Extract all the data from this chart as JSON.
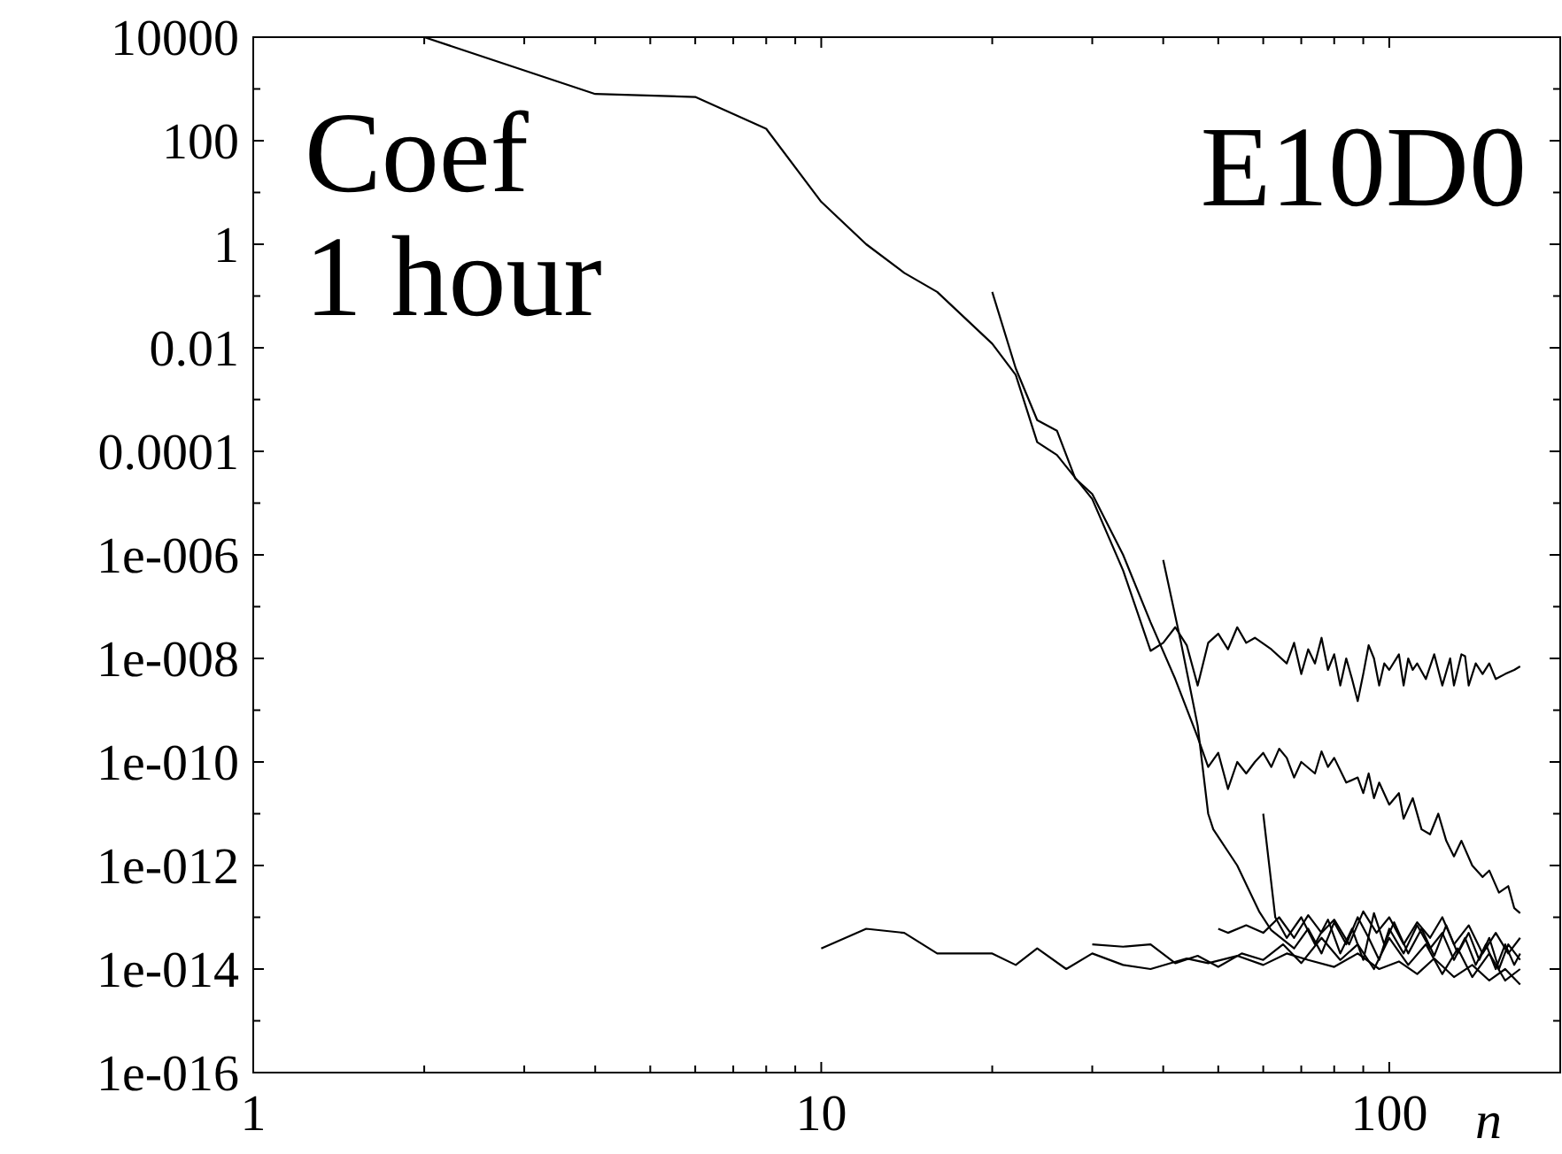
{
  "chart_data": {
    "type": "line",
    "xlabel": "n",
    "log": "xy",
    "marker": "none",
    "xlim": [
      1,
      200
    ],
    "ylim": [
      1e-16,
      10000
    ],
    "xticks": [
      {
        "value": 1,
        "label": "1"
      },
      {
        "value": 2,
        "label": null
      },
      {
        "value": 3,
        "label": null
      },
      {
        "value": 4,
        "label": null
      },
      {
        "value": 5,
        "label": null
      },
      {
        "value": 6,
        "label": null
      },
      {
        "value": 7,
        "label": null
      },
      {
        "value": 8,
        "label": null
      },
      {
        "value": 9,
        "label": null
      },
      {
        "value": 10,
        "label": "10"
      },
      {
        "value": 20,
        "label": null
      },
      {
        "value": 30,
        "label": null
      },
      {
        "value": 40,
        "label": null
      },
      {
        "value": 50,
        "label": null
      },
      {
        "value": 60,
        "label": null
      },
      {
        "value": 70,
        "label": null
      },
      {
        "value": 80,
        "label": null
      },
      {
        "value": 90,
        "label": null
      },
      {
        "value": 100,
        "label": "100"
      }
    ],
    "yticks": [
      {
        "value": 1e-16,
        "label": "1e-016"
      },
      {
        "value": 1e-15,
        "label": null
      },
      {
        "value": 1e-14,
        "label": "1e-014"
      },
      {
        "value": 1e-13,
        "label": null
      },
      {
        "value": 1e-12,
        "label": "1e-012"
      },
      {
        "value": 1e-11,
        "label": null
      },
      {
        "value": 1e-10,
        "label": "1e-010"
      },
      {
        "value": 1e-09,
        "label": null
      },
      {
        "value": 1e-08,
        "label": "1e-008"
      },
      {
        "value": 1e-07,
        "label": null
      },
      {
        "value": 1e-06,
        "label": "1e-006"
      },
      {
        "value": 1e-05,
        "label": null
      },
      {
        "value": 0.0001,
        "label": "0.0001"
      },
      {
        "value": 0.001,
        "label": null
      },
      {
        "value": 0.01,
        "label": "0.01"
      },
      {
        "value": 0.1,
        "label": null
      },
      {
        "value": 1,
        "label": "1"
      },
      {
        "value": 10,
        "label": null
      },
      {
        "value": 100,
        "label": "100"
      },
      {
        "value": 1000,
        "label": null
      },
      {
        "value": 10000,
        "label": "10000"
      }
    ],
    "annotations": [
      "Coef",
      "1 hour",
      "E10D0"
    ],
    "series": [
      {
        "color": "#000000",
        "x": [
          1,
          2,
          4,
          6,
          8,
          10,
          12,
          14,
          16,
          20,
          22,
          24,
          26,
          30,
          34,
          38,
          40,
          42,
          44,
          46,
          48,
          50,
          52,
          54,
          56,
          58,
          62,
          66,
          68,
          70,
          72,
          74,
          76,
          78,
          80,
          82,
          84,
          86,
          88,
          90,
          92,
          94,
          96,
          98,
          100,
          104,
          106,
          108,
          110,
          112,
          116,
          120,
          124,
          128,
          130,
          134,
          136,
          138,
          142,
          146,
          150,
          154,
          160,
          166,
          170
        ],
        "values": [
          10000,
          10000,
          800,
          700,
          170,
          6.6,
          1,
          0.28,
          0.12,
          0.012,
          0.003,
          0.00015,
          8.5e-05,
          1.2e-05,
          5e-07,
          1.4e-08,
          2e-08,
          4e-08,
          1.8e-08,
          3e-09,
          2e-08,
          3e-08,
          1.5e-08,
          4e-08,
          2e-08,
          2.5e-08,
          1.5e-08,
          8e-09,
          2e-08,
          5e-09,
          1.5e-08,
          8e-09,
          2.5e-08,
          6e-09,
          1.2e-08,
          3e-09,
          1e-08,
          4e-09,
          1.5e-09,
          5e-09,
          1.8e-08,
          1e-08,
          3e-09,
          8e-09,
          6e-09,
          1.2e-08,
          3e-09,
          1e-08,
          6e-09,
          8e-09,
          4e-09,
          1.2e-08,
          3e-09,
          1e-08,
          3e-09,
          1.2e-08,
          1.1e-08,
          3e-09,
          8e-09,
          5e-09,
          8e-09,
          4e-09,
          5e-09,
          6e-09,
          7e-09
        ]
      },
      {
        "color": "#000000",
        "x": [
          20,
          22,
          24,
          26,
          28,
          30,
          34,
          38,
          42,
          46,
          48,
          50,
          52,
          54,
          56,
          58,
          60,
          62,
          64,
          66,
          68,
          70,
          74,
          76,
          78,
          80,
          84,
          88,
          90,
          92,
          94,
          96,
          100,
          104,
          106,
          110,
          114,
          118,
          122,
          126,
          130,
          134,
          140,
          146,
          150,
          156,
          162,
          166,
          170
        ],
        "values": [
          0.12,
          0.004,
          0.0004,
          0.00025,
          3e-05,
          1.5e-05,
          1e-06,
          5e-08,
          4e-09,
          3e-10,
          8e-11,
          1.5e-10,
          3e-11,
          1e-10,
          6e-11,
          1e-10,
          1.5e-10,
          8e-11,
          1.8e-10,
          1.2e-10,
          5e-11,
          1e-10,
          6e-11,
          1.6e-10,
          8e-11,
          1.2e-10,
          4e-11,
          5e-11,
          2.5e-11,
          6e-11,
          2e-11,
          4e-11,
          1.5e-11,
          2.5e-11,
          8e-12,
          2e-11,
          5e-12,
          4e-12,
          1e-11,
          3e-12,
          1.5e-12,
          3e-12,
          1e-12,
          6e-13,
          8e-13,
          3e-13,
          4e-13,
          1.5e-13,
          1.2e-13
        ]
      },
      {
        "color": "#000000",
        "x": [
          40,
          43,
          46,
          48,
          49,
          54,
          59,
          62,
          68,
          72,
          76,
          80,
          84,
          88,
          92,
          96,
          100,
          106,
          112,
          118,
          124,
          130,
          136,
          142,
          148,
          154,
          160,
          166,
          170
        ],
        "values": [
          8e-07,
          2e-08,
          5e-10,
          1e-11,
          5e-12,
          1e-12,
          1.3e-13,
          5.6e-14,
          2.5e-14,
          6e-14,
          2e-14,
          8e-14,
          3e-14,
          1e-13,
          4e-14,
          1.5e-14,
          6e-14,
          2e-14,
          7e-14,
          2.5e-14,
          5e-14,
          1.5e-14,
          4e-14,
          1.2e-14,
          3e-14,
          1e-14,
          3e-14,
          1.2e-14,
          2e-14
        ]
      },
      {
        "color": "#000000",
        "x": [
          60,
          63,
          66,
          70,
          74,
          78,
          82,
          86,
          90,
          94,
          98,
          102,
          108,
          114,
          120,
          126,
          132,
          138,
          144,
          150,
          156,
          162,
          170
        ],
        "values": [
          1e-11,
          1e-13,
          4e-14,
          1e-13,
          3e-14,
          9e-14,
          2e-14,
          6e-14,
          1.5e-14,
          1.2e-13,
          3e-14,
          8e-14,
          2e-14,
          6e-14,
          1.8e-14,
          7e-14,
          2e-14,
          5e-14,
          1.5e-14,
          4e-14,
          1e-14,
          3e-14,
          1.5e-14
        ]
      },
      {
        "color": "#000000",
        "x": [
          10,
          12,
          14,
          16,
          18,
          20,
          22,
          24,
          27,
          30,
          34,
          38,
          44,
          48,
          54,
          60,
          66,
          72,
          80,
          88,
          96,
          104,
          112,
          120,
          130,
          140,
          150,
          160,
          170
        ],
        "values": [
          2.5e-14,
          6e-14,
          5e-14,
          2e-14,
          2e-14,
          2e-14,
          1.2e-14,
          2.5e-14,
          1e-14,
          2e-14,
          1.2e-14,
          1e-14,
          1.6e-14,
          1.3e-14,
          1.8e-14,
          1.2e-14,
          2e-14,
          1.5e-14,
          1.1e-14,
          2e-14,
          1e-14,
          1.4e-14,
          8e-15,
          1.6e-14,
          7e-15,
          1.2e-14,
          6e-15,
          1e-14,
          5e-15
        ]
      },
      {
        "color": "#000000",
        "x": [
          30,
          34,
          38,
          42,
          46,
          50,
          55,
          60,
          65,
          70,
          76,
          82,
          88,
          94,
          100,
          108,
          116,
          124,
          132,
          140,
          150,
          160,
          170
        ],
        "values": [
          3e-14,
          2.7e-14,
          3e-14,
          1.3e-14,
          1.8e-14,
          1.1e-14,
          2e-14,
          1.5e-14,
          3e-14,
          1.3e-14,
          4e-14,
          1.5e-14,
          3e-14,
          1e-14,
          4e-14,
          1.2e-14,
          3e-14,
          8e-15,
          2.5e-14,
          7e-15,
          2e-14,
          6e-15,
          1e-14
        ]
      },
      {
        "color": "#000000",
        "x": [
          50,
          52,
          56,
          60,
          64,
          68,
          72,
          76,
          80,
          85,
          90,
          95,
          100,
          106,
          112,
          118,
          124,
          130,
          138,
          146,
          154,
          162,
          170
        ],
        "values": [
          6e-14,
          5e-14,
          7e-14,
          5e-14,
          1e-13,
          4e-14,
          1.1e-13,
          5e-14,
          9e-14,
          3e-14,
          1.3e-13,
          5e-14,
          1e-13,
          3e-14,
          8e-14,
          4e-14,
          1e-13,
          3e-14,
          7e-14,
          2e-14,
          5e-14,
          2e-14,
          4e-14
        ]
      }
    ]
  }
}
